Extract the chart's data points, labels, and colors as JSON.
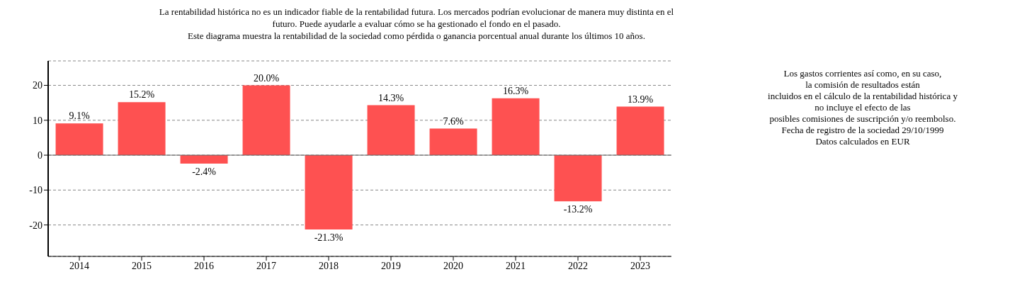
{
  "chart_data": {
    "type": "bar",
    "title": "La rentabilidad histórica no es un indicador fiable de la rentabilidad futura. Los mercados podrían evolucionar de manera muy distinta en el\nfuturo. Puede ayudarle a evaluar cómo se ha gestionado el fondo en el pasado.\nEste diagrama muestra la rentabilidad de la sociedad como pérdida o ganancia porcentual anual durante los últimos 10 años.",
    "categories": [
      "2014",
      "2015",
      "2016",
      "2017",
      "2018",
      "2019",
      "2020",
      "2021",
      "2022",
      "2023"
    ],
    "values": [
      9.1,
      15.2,
      -2.4,
      20.0,
      -21.3,
      14.3,
      7.6,
      16.3,
      -13.2,
      13.9
    ],
    "value_labels": [
      "9.1%",
      "15.2%",
      "-2.4%",
      "20.0%",
      "-21.3%",
      "14.3%",
      "7.6%",
      "16.3%",
      "-13.2%",
      "13.9%"
    ],
    "color": "#fe5151",
    "ylim": [
      -29,
      27
    ],
    "yticks": [
      -20,
      -10,
      0,
      10,
      20
    ],
    "grid": "y",
    "annotations": [
      "Los gastos corrientes así como, en su caso,\nla comisión de resultados están\nincluidos en el cálculo de la rentabilidad histórica y\nno incluye el efecto de las\nposibles comisiones de suscripción y/o reembolso.\nFecha de registro de la sociedad 29/10/1999\nDatos calculados en EUR"
    ]
  }
}
